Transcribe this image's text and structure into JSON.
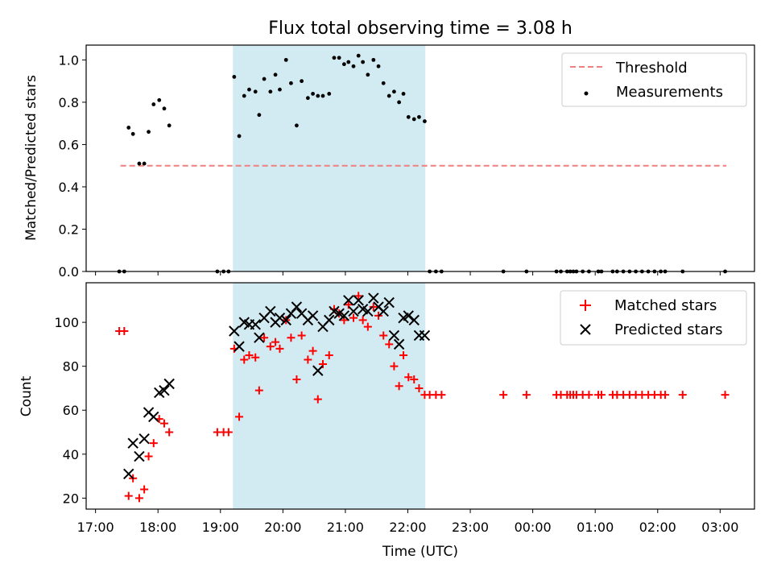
{
  "chart_data": {
    "title": "Flux total observing time = 3.08 h",
    "xlabel": "Time (UTC)",
    "x_unit": "hours",
    "xlim": [
      16.85,
      27.55
    ],
    "x_ticks": [
      {
        "x": 17,
        "label": "17:00"
      },
      {
        "x": 18,
        "label": "18:00"
      },
      {
        "x": 19,
        "label": "19:00"
      },
      {
        "x": 20,
        "label": "20:00"
      },
      {
        "x": 21,
        "label": "21:00"
      },
      {
        "x": 22,
        "label": "22:00"
      },
      {
        "x": 23,
        "label": "23:00"
      },
      {
        "x": 24,
        "label": "00:00"
      },
      {
        "x": 25,
        "label": "01:00"
      },
      {
        "x": 26,
        "label": "02:00"
      },
      {
        "x": 27,
        "label": "03:00"
      }
    ],
    "observing_window": {
      "start": 19.2,
      "end": 22.28,
      "color": "#add8e6"
    },
    "panels": [
      {
        "id": "ratio",
        "type": "scatter",
        "ylabel": "Matched/Predicted stars",
        "ylim": [
          0,
          1.07
        ],
        "y_ticks": [
          0.0,
          0.2,
          0.4,
          0.6,
          0.8,
          1.0
        ],
        "y_tick_labels": [
          "0.0",
          "0.2",
          "0.4",
          "0.6",
          "0.8",
          "1.0"
        ],
        "legend": {
          "position": "top-right"
        },
        "threshold": {
          "name": "Threshold",
          "value": 0.5,
          "x_range": [
            17.4,
            27.1
          ],
          "color": "#f08080",
          "style": "dashed"
        },
        "series": [
          {
            "name": "Measurements",
            "marker": "dot",
            "color": "#000000",
            "points": [
              [
                17.38,
                0.0
              ],
              [
                17.46,
                0.0
              ],
              [
                17.53,
                0.68
              ],
              [
                17.6,
                0.65
              ],
              [
                17.7,
                0.51
              ],
              [
                17.78,
                0.51
              ],
              [
                17.85,
                0.66
              ],
              [
                17.93,
                0.79
              ],
              [
                18.02,
                0.81
              ],
              [
                18.1,
                0.77
              ],
              [
                18.18,
                0.69
              ],
              [
                18.95,
                0.0
              ],
              [
                19.05,
                0.0
              ],
              [
                19.13,
                0.0
              ],
              [
                19.22,
                0.92
              ],
              [
                19.3,
                0.64
              ],
              [
                19.38,
                0.83
              ],
              [
                19.46,
                0.86
              ],
              [
                19.56,
                0.85
              ],
              [
                19.62,
                0.74
              ],
              [
                19.7,
                0.91
              ],
              [
                19.8,
                0.85
              ],
              [
                19.88,
                0.93
              ],
              [
                19.95,
                0.86
              ],
              [
                20.05,
                1.0
              ],
              [
                20.13,
                0.89
              ],
              [
                20.22,
                0.69
              ],
              [
                20.3,
                0.9
              ],
              [
                20.4,
                0.82
              ],
              [
                20.48,
                0.84
              ],
              [
                20.56,
                0.83
              ],
              [
                20.64,
                0.83
              ],
              [
                20.74,
                0.84
              ],
              [
                20.82,
                1.01
              ],
              [
                20.9,
                1.01
              ],
              [
                20.98,
                0.98
              ],
              [
                21.05,
                0.99
              ],
              [
                21.13,
                0.97
              ],
              [
                21.21,
                1.02
              ],
              [
                21.28,
                0.99
              ],
              [
                21.36,
                0.93
              ],
              [
                21.45,
                1.0
              ],
              [
                21.53,
                0.97
              ],
              [
                21.61,
                0.89
              ],
              [
                21.7,
                0.83
              ],
              [
                21.78,
                0.85
              ],
              [
                21.86,
                0.8
              ],
              [
                21.93,
                0.84
              ],
              [
                22.01,
                0.73
              ],
              [
                22.1,
                0.72
              ],
              [
                22.18,
                0.73
              ],
              [
                22.27,
                0.71
              ],
              [
                22.35,
                0.0
              ],
              [
                22.45,
                0.0
              ],
              [
                22.54,
                0.0
              ],
              [
                23.53,
                0.0
              ],
              [
                23.9,
                0.0
              ],
              [
                24.38,
                0.0
              ],
              [
                24.45,
                0.0
              ],
              [
                24.55,
                0.0
              ],
              [
                24.6,
                0.0
              ],
              [
                24.65,
                0.0
              ],
              [
                24.7,
                0.0
              ],
              [
                24.8,
                0.0
              ],
              [
                24.9,
                0.0
              ],
              [
                25.05,
                0.0
              ],
              [
                25.1,
                0.0
              ],
              [
                25.28,
                0.0
              ],
              [
                25.35,
                0.0
              ],
              [
                25.45,
                0.0
              ],
              [
                25.55,
                0.0
              ],
              [
                25.65,
                0.0
              ],
              [
                25.75,
                0.0
              ],
              [
                25.85,
                0.0
              ],
              [
                25.95,
                0.0
              ],
              [
                26.05,
                0.0
              ],
              [
                26.12,
                0.0
              ],
              [
                26.4,
                0.0
              ],
              [
                27.08,
                0.0
              ]
            ]
          }
        ]
      },
      {
        "id": "counts",
        "type": "scatter",
        "ylabel": "Count",
        "ylim": [
          15,
          118
        ],
        "y_ticks": [
          20,
          40,
          60,
          80,
          100
        ],
        "y_tick_labels": [
          "20",
          "40",
          "60",
          "80",
          "100"
        ],
        "legend": {
          "position": "top-right"
        },
        "series": [
          {
            "name": "Matched stars",
            "marker": "plus",
            "color": "#ff0000",
            "points": [
              [
                17.38,
                96
              ],
              [
                17.46,
                96
              ],
              [
                17.53,
                21
              ],
              [
                17.6,
                29
              ],
              [
                17.7,
                20
              ],
              [
                17.78,
                24
              ],
              [
                17.85,
                39
              ],
              [
                17.93,
                45
              ],
              [
                18.02,
                56
              ],
              [
                18.1,
                54
              ],
              [
                18.18,
                50
              ],
              [
                18.95,
                50
              ],
              [
                19.05,
                50
              ],
              [
                19.13,
                50
              ],
              [
                19.22,
                88
              ],
              [
                19.3,
                57
              ],
              [
                19.38,
                83
              ],
              [
                19.46,
                85
              ],
              [
                19.56,
                84
              ],
              [
                19.62,
                69
              ],
              [
                19.7,
                93
              ],
              [
                19.8,
                89
              ],
              [
                19.88,
                91
              ],
              [
                19.95,
                88
              ],
              [
                20.05,
                101
              ],
              [
                20.13,
                93
              ],
              [
                20.22,
                74
              ],
              [
                20.3,
                94
              ],
              [
                20.4,
                83
              ],
              [
                20.48,
                87
              ],
              [
                20.56,
                65
              ],
              [
                20.64,
                81
              ],
              [
                20.74,
                85
              ],
              [
                20.82,
                106
              ],
              [
                20.9,
                104
              ],
              [
                20.98,
                101
              ],
              [
                21.05,
                108
              ],
              [
                21.13,
                102
              ],
              [
                21.21,
                112
              ],
              [
                21.28,
                101
              ],
              [
                21.36,
                98
              ],
              [
                21.45,
                107
              ],
              [
                21.53,
                103
              ],
              [
                21.61,
                94
              ],
              [
                21.7,
                90
              ],
              [
                21.78,
                80
              ],
              [
                21.86,
                71
              ],
              [
                21.93,
                85
              ],
              [
                22.01,
                75
              ],
              [
                22.1,
                74
              ],
              [
                22.18,
                70
              ],
              [
                22.27,
                67
              ],
              [
                22.35,
                67
              ],
              [
                22.45,
                67
              ],
              [
                22.54,
                67
              ],
              [
                23.53,
                67
              ],
              [
                23.9,
                67
              ],
              [
                24.38,
                67
              ],
              [
                24.45,
                67
              ],
              [
                24.55,
                67
              ],
              [
                24.6,
                67
              ],
              [
                24.65,
                67
              ],
              [
                24.7,
                67
              ],
              [
                24.8,
                67
              ],
              [
                24.9,
                67
              ],
              [
                25.05,
                67
              ],
              [
                25.1,
                67
              ],
              [
                25.28,
                67
              ],
              [
                25.35,
                67
              ],
              [
                25.45,
                67
              ],
              [
                25.55,
                67
              ],
              [
                25.65,
                67
              ],
              [
                25.75,
                67
              ],
              [
                25.85,
                67
              ],
              [
                25.95,
                67
              ],
              [
                26.05,
                67
              ],
              [
                26.12,
                67
              ],
              [
                26.4,
                67
              ],
              [
                27.08,
                67
              ]
            ]
          },
          {
            "name": "Predicted stars",
            "marker": "x",
            "color": "#000000",
            "points": [
              [
                17.53,
                31
              ],
              [
                17.6,
                45
              ],
              [
                17.7,
                39
              ],
              [
                17.78,
                47
              ],
              [
                17.85,
                59
              ],
              [
                17.93,
                57
              ],
              [
                18.02,
                68
              ],
              [
                18.1,
                69
              ],
              [
                18.18,
                72
              ],
              [
                19.22,
                96
              ],
              [
                19.3,
                89
              ],
              [
                19.38,
                100
              ],
              [
                19.46,
                99
              ],
              [
                19.56,
                99
              ],
              [
                19.62,
                93
              ],
              [
                19.7,
                102
              ],
              [
                19.8,
                105
              ],
              [
                19.88,
                100
              ],
              [
                19.95,
                102
              ],
              [
                20.05,
                101
              ],
              [
                20.13,
                104
              ],
              [
                20.22,
                107
              ],
              [
                20.3,
                104
              ],
              [
                20.4,
                101
              ],
              [
                20.48,
                103
              ],
              [
                20.56,
                78
              ],
              [
                20.64,
                98
              ],
              [
                20.74,
                101
              ],
              [
                20.82,
                105
              ],
              [
                20.9,
                104
              ],
              [
                20.98,
                103
              ],
              [
                21.05,
                110
              ],
              [
                21.13,
                105
              ],
              [
                21.21,
                110
              ],
              [
                21.28,
                106
              ],
              [
                21.36,
                105
              ],
              [
                21.45,
                111
              ],
              [
                21.53,
                107
              ],
              [
                21.61,
                105
              ],
              [
                21.7,
                109
              ],
              [
                21.78,
                94
              ],
              [
                21.86,
                90
              ],
              [
                21.93,
                102
              ],
              [
                22.01,
                103
              ],
              [
                22.1,
                101
              ],
              [
                22.18,
                94
              ],
              [
                22.27,
                94
              ]
            ]
          }
        ]
      }
    ]
  }
}
